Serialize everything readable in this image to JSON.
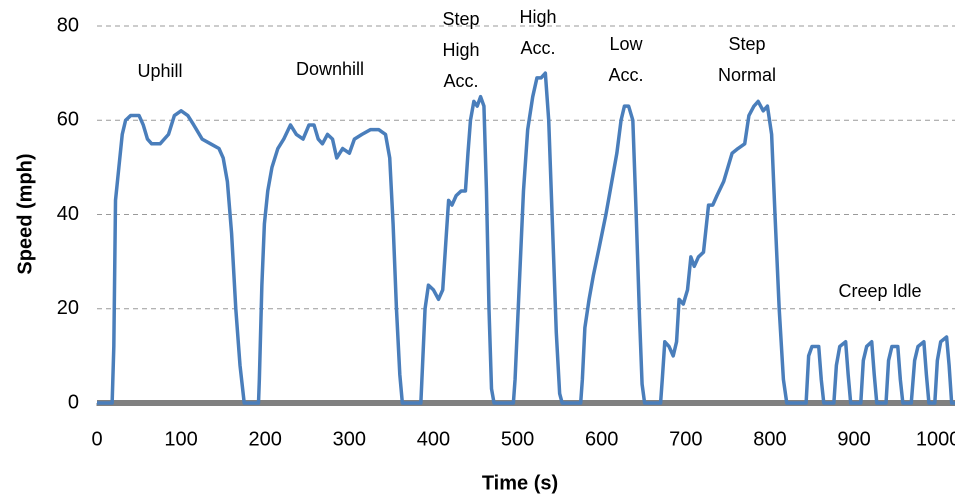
{
  "chart_data": {
    "type": "line",
    "xlabel": "Time (s)",
    "ylabel": "Speed (mph)",
    "annotations": [
      [
        "Uphill"
      ],
      [
        "Downhill"
      ],
      [
        "Step",
        "High",
        "Acc."
      ],
      [
        "High",
        "Acc."
      ],
      [
        "Low",
        "Acc."
      ],
      [
        "Step",
        "Normal"
      ],
      [
        "Creep Idle"
      ]
    ],
    "x": [
      0,
      18,
      20,
      22,
      26,
      30,
      34,
      40,
      50,
      55,
      60,
      65,
      75,
      85,
      92,
      100,
      108,
      115,
      125,
      135,
      145,
      150,
      155,
      160,
      165,
      170,
      175,
      192,
      193,
      196,
      199,
      203,
      208,
      215,
      222,
      230,
      237,
      245,
      252,
      258,
      263,
      268,
      274,
      280,
      285,
      292,
      300,
      306,
      315,
      325,
      335,
      343,
      348,
      352,
      356,
      360,
      363,
      385,
      387,
      390,
      394,
      400,
      406,
      411,
      415,
      418,
      422,
      427,
      433,
      438,
      441,
      444,
      448,
      452,
      456,
      460,
      463,
      466,
      469,
      472,
      495,
      497,
      502,
      507,
      512,
      518,
      523,
      528,
      533,
      537,
      541,
      546,
      550,
      553,
      575,
      577,
      580,
      585,
      590,
      597,
      605,
      612,
      618,
      623,
      627,
      632,
      637,
      641,
      645,
      648,
      651,
      670,
      672,
      675,
      680,
      685,
      689,
      692,
      697,
      702,
      706,
      710,
      715,
      721,
      727,
      732,
      737,
      745,
      755,
      762,
      770,
      775,
      781,
      786,
      792,
      797,
      802,
      806,
      811,
      816,
      820,
      843,
      846,
      850,
      858,
      861,
      864,
      876,
      879,
      883,
      890,
      893,
      896,
      908,
      911,
      915,
      921,
      924,
      927,
      938,
      941,
      945,
      952,
      955,
      958,
      968,
      972,
      976,
      983,
      986,
      989,
      996,
      999,
      1003,
      1010,
      1013,
      1016,
      1020
    ],
    "series": [
      {
        "color": "#4a7ebb",
        "values": [
          0,
          0,
          12,
          43,
          50,
          57,
          60,
          61,
          61,
          59,
          56,
          55,
          55,
          57,
          61,
          62,
          61,
          59,
          56,
          55,
          54,
          52,
          47,
          36,
          20,
          8,
          0,
          0,
          5,
          25,
          38,
          45,
          50,
          54,
          56,
          59,
          57,
          56,
          59,
          59,
          56,
          55,
          57,
          56,
          52,
          54,
          53,
          56,
          57,
          58,
          58,
          57,
          52,
          38,
          20,
          6,
          0,
          0,
          8,
          20,
          25,
          24,
          22,
          24,
          35,
          43,
          42,
          44,
          45,
          45,
          53,
          60,
          64,
          63,
          65,
          63,
          45,
          20,
          3,
          0,
          0,
          5,
          25,
          45,
          58,
          65,
          69,
          69,
          70,
          60,
          40,
          15,
          2,
          0,
          0,
          5,
          16,
          22,
          27,
          33,
          40,
          47,
          53,
          60,
          63,
          63,
          60,
          40,
          18,
          4,
          0,
          0,
          5,
          13,
          12,
          10,
          13,
          22,
          21,
          24,
          31,
          29,
          31,
          32,
          42,
          42,
          44,
          47,
          53,
          54,
          55,
          61,
          63,
          64,
          62,
          63,
          57,
          40,
          20,
          5,
          0,
          0,
          10,
          12,
          12,
          5,
          0,
          0,
          8,
          12,
          13,
          6,
          0,
          0,
          9,
          12,
          13,
          6,
          0,
          0,
          9,
          12,
          12,
          5,
          0,
          0,
          9,
          12,
          13,
          6,
          0,
          0,
          9,
          13,
          14,
          8,
          0,
          0
        ]
      }
    ],
    "xlim": [
      0,
      1020
    ],
    "xticks": [
      0,
      100,
      200,
      300,
      400,
      500,
      600,
      700,
      800,
      900,
      1000
    ],
    "ylim": [
      0,
      80
    ],
    "yticks": [
      0,
      20,
      40,
      60,
      80
    ],
    "grid": true
  }
}
